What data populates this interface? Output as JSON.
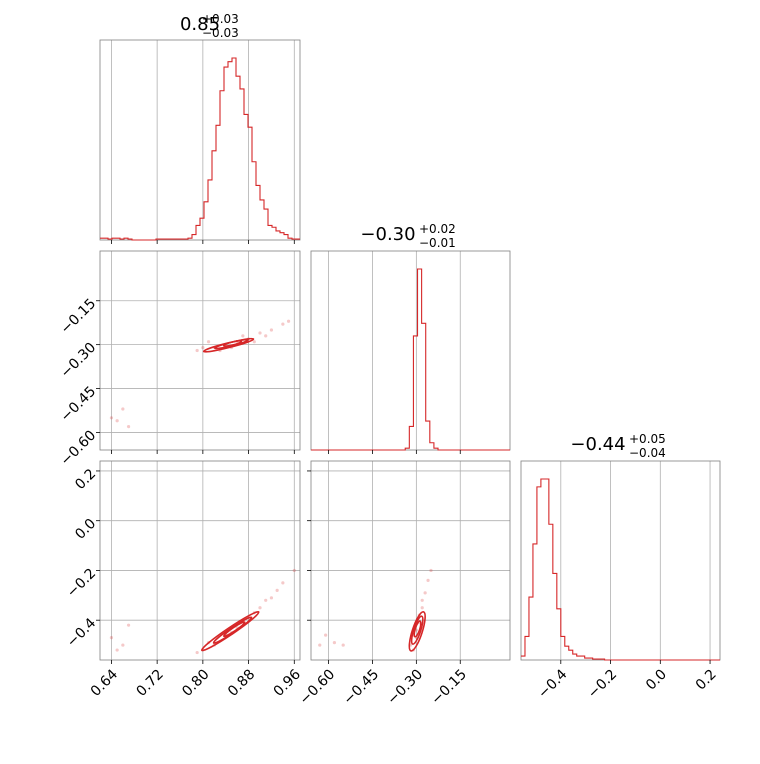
{
  "colors": {
    "series": "#d62728",
    "grid": "#b0b0b0",
    "frame": "#808080"
  },
  "titles": {
    "p0": {
      "median": "0.85",
      "plus": "+0.03",
      "minus": "−0.03"
    },
    "p1": {
      "median": "−0.30",
      "plus": "+0.02",
      "minus": "−0.01"
    },
    "p2": {
      "median": "−0.44",
      "plus": "+0.05",
      "minus": "−0.04"
    }
  },
  "chart_data": {
    "type": "corner",
    "parameters": [
      {
        "range": [
          0.62,
          0.97
        ],
        "ticks": [
          0.64,
          0.72,
          0.8,
          0.88,
          0.96
        ],
        "tick_labels": [
          "0.64",
          "0.72",
          "0.80",
          "0.88",
          "0.96"
        ]
      },
      {
        "range": [
          -0.66,
          0.02
        ],
        "ticks": [
          -0.6,
          -0.45,
          -0.3,
          -0.15
        ],
        "tick_labels": [
          "−0.60",
          "−0.45",
          "−0.30",
          "−0.15"
        ]
      },
      {
        "range": [
          -0.56,
          0.24
        ],
        "ticks": [
          -0.4,
          -0.2,
          0.0,
          0.2
        ],
        "tick_labels": [
          "−0.4",
          "−0.2",
          "0.0",
          "0.2"
        ]
      }
    ],
    "histograms": [
      {
        "param": 0,
        "bin_edges": [
          0.62,
          0.627,
          0.634,
          0.641,
          0.648,
          0.655,
          0.662,
          0.669,
          0.676,
          0.683,
          0.69,
          0.697,
          0.704,
          0.711,
          0.718,
          0.725,
          0.732,
          0.739,
          0.746,
          0.753,
          0.76,
          0.767,
          0.774,
          0.781,
          0.788,
          0.795,
          0.802,
          0.809,
          0.816,
          0.823,
          0.83,
          0.837,
          0.844,
          0.851,
          0.858,
          0.865,
          0.872,
          0.879,
          0.886,
          0.893,
          0.9,
          0.907,
          0.914,
          0.921,
          0.928,
          0.935,
          0.942,
          0.949,
          0.956,
          0.963,
          0.97
        ],
        "counts": [
          0.01,
          0.01,
          0.005,
          0.01,
          0.01,
          0.005,
          0.01,
          0.005,
          0.0,
          0.0,
          0.0,
          0.0,
          0.0,
          0.0,
          0.005,
          0.005,
          0.005,
          0.005,
          0.005,
          0.005,
          0.005,
          0.005,
          0.01,
          0.03,
          0.08,
          0.12,
          0.21,
          0.33,
          0.49,
          0.63,
          0.82,
          0.95,
          0.98,
          1.0,
          0.9,
          0.83,
          0.69,
          0.62,
          0.43,
          0.3,
          0.22,
          0.17,
          0.08,
          0.07,
          0.05,
          0.04,
          0.03,
          0.01,
          0.005,
          0.005
        ]
      },
      {
        "param": 1,
        "bin_edges": [
          -0.66,
          -0.646,
          -0.632,
          -0.618,
          -0.604,
          -0.59,
          -0.576,
          -0.562,
          -0.548,
          -0.534,
          -0.52,
          -0.506,
          -0.492,
          -0.478,
          -0.464,
          -0.45,
          -0.436,
          -0.422,
          -0.408,
          -0.394,
          -0.38,
          -0.366,
          -0.352,
          -0.338,
          -0.324,
          -0.31,
          -0.296,
          -0.282,
          -0.268,
          -0.254,
          -0.24,
          -0.226,
          -0.212,
          -0.198,
          -0.184,
          -0.17,
          -0.156,
          -0.142,
          -0.128,
          -0.114,
          -0.1,
          -0.086,
          -0.072,
          -0.058,
          -0.044,
          -0.03,
          -0.016,
          -0.002,
          0.012,
          0.02
        ],
        "counts": [
          0.0,
          0.0,
          0.0,
          0.0,
          0.0,
          0.0,
          0.0,
          0.0,
          0.0,
          0.0,
          0.0,
          0.0,
          0.0,
          0.0,
          0.0,
          0.0,
          0.0,
          0.0,
          0.0,
          0.0,
          0.0,
          0.0,
          0.0,
          0.01,
          0.13,
          0.63,
          1.0,
          0.7,
          0.16,
          0.04,
          0.01,
          0.0,
          0.0,
          0.0,
          0.0,
          0.0,
          0.0,
          0.0,
          0.0,
          0.0,
          0.0,
          0.0,
          0.0,
          0.0,
          0.0,
          0.0,
          0.0,
          0.0,
          0.0
        ]
      },
      {
        "param": 2,
        "bin_edges": [
          -0.56,
          -0.544,
          -0.528,
          -0.512,
          -0.496,
          -0.48,
          -0.464,
          -0.448,
          -0.432,
          -0.416,
          -0.4,
          -0.384,
          -0.368,
          -0.352,
          -0.336,
          -0.32,
          -0.304,
          -0.288,
          -0.272,
          -0.256,
          -0.24,
          -0.224,
          -0.208,
          -0.192,
          -0.176,
          -0.16,
          -0.144,
          -0.128,
          -0.112,
          -0.096,
          -0.08,
          -0.064,
          -0.048,
          -0.032,
          -0.016,
          0.0,
          0.016,
          0.032,
          0.048,
          0.064,
          0.08,
          0.096,
          0.112,
          0.128,
          0.144,
          0.16,
          0.176,
          0.192,
          0.208,
          0.224,
          0.24
        ],
        "counts": [
          0.02,
          0.12,
          0.32,
          0.59,
          0.88,
          0.92,
          0.92,
          0.69,
          0.44,
          0.26,
          0.12,
          0.07,
          0.05,
          0.03,
          0.02,
          0.02,
          0.01,
          0.01,
          0.005,
          0.005,
          0.005,
          0.0,
          0.0,
          0.0,
          0.0,
          0.0,
          0.0,
          0.0,
          0.0,
          0.0,
          0.0,
          0.0,
          0.0,
          0.0,
          0.0,
          0.0,
          0.0,
          0.0,
          0.0,
          0.0,
          0.0,
          0.0,
          0.0,
          0.0,
          0.0,
          0.0,
          0.0,
          0.0,
          0.0,
          0.0
        ]
      }
    ],
    "scatter_2d": [
      {
        "x_param": 0,
        "y_param": 1,
        "points": [
          [
            0.8,
            -0.31
          ],
          [
            0.82,
            -0.31
          ],
          [
            0.84,
            -0.3
          ],
          [
            0.86,
            -0.29
          ],
          [
            0.88,
            -0.28
          ],
          [
            0.9,
            -0.26
          ],
          [
            0.92,
            -0.25
          ],
          [
            0.94,
            -0.23
          ],
          [
            0.95,
            -0.22
          ],
          [
            0.79,
            -0.32
          ],
          [
            0.81,
            -0.29
          ],
          [
            0.83,
            -0.32
          ],
          [
            0.85,
            -0.31
          ],
          [
            0.87,
            -0.27
          ],
          [
            0.89,
            -0.29
          ],
          [
            0.91,
            -0.27
          ],
          [
            0.64,
            -0.55
          ],
          [
            0.65,
            -0.56
          ],
          [
            0.66,
            -0.52
          ],
          [
            0.67,
            -0.58
          ]
        ],
        "contours": [
          {
            "center": [
              0.845,
              -0.302
            ],
            "semi_axes": [
              0.045,
              0.008
            ],
            "angle_deg": 14
          },
          {
            "center": [
              0.85,
              -0.298
            ],
            "semi_axes": [
              0.03,
              0.006
            ],
            "angle_deg": 14
          },
          {
            "center": [
              0.852,
              -0.296
            ],
            "semi_axes": [
              0.016,
              0.004
            ],
            "angle_deg": 14
          }
        ]
      },
      {
        "x_param": 0,
        "y_param": 2,
        "points": [
          [
            0.8,
            -0.52
          ],
          [
            0.82,
            -0.5
          ],
          [
            0.84,
            -0.46
          ],
          [
            0.86,
            -0.43
          ],
          [
            0.88,
            -0.39
          ],
          [
            0.9,
            -0.35
          ],
          [
            0.92,
            -0.31
          ],
          [
            0.94,
            -0.25
          ],
          [
            0.96,
            -0.2
          ],
          [
            0.79,
            -0.53
          ],
          [
            0.81,
            -0.49
          ],
          [
            0.85,
            -0.45
          ],
          [
            0.87,
            -0.4
          ],
          [
            0.89,
            -0.37
          ],
          [
            0.91,
            -0.32
          ],
          [
            0.93,
            -0.28
          ],
          [
            0.64,
            -0.47
          ],
          [
            0.66,
            -0.5
          ],
          [
            0.67,
            -0.42
          ],
          [
            0.65,
            -0.52
          ]
        ],
        "contours": [
          {
            "center": [
              0.848,
              -0.444
            ],
            "semi_axes": [
              0.06,
              0.014
            ],
            "angle_deg": 34
          },
          {
            "center": [
              0.852,
              -0.44
            ],
            "semi_axes": [
              0.04,
              0.01
            ],
            "angle_deg": 34
          },
          {
            "center": [
              0.855,
              -0.436
            ],
            "semi_axes": [
              0.022,
              0.007
            ],
            "angle_deg": 34
          }
        ]
      },
      {
        "x_param": 1,
        "y_param": 2,
        "points": [
          [
            -0.31,
            -0.52
          ],
          [
            -0.3,
            -0.47
          ],
          [
            -0.29,
            -0.41
          ],
          [
            -0.28,
            -0.35
          ],
          [
            -0.27,
            -0.29
          ],
          [
            -0.26,
            -0.24
          ],
          [
            -0.25,
            -0.2
          ],
          [
            -0.32,
            -0.5
          ],
          [
            -0.3,
            -0.44
          ],
          [
            -0.29,
            -0.38
          ],
          [
            -0.31,
            -0.46
          ],
          [
            -0.28,
            -0.32
          ],
          [
            -0.61,
            -0.46
          ],
          [
            -0.58,
            -0.49
          ],
          [
            -0.55,
            -0.5
          ],
          [
            -0.63,
            -0.5
          ]
        ],
        "contours": [
          {
            "center": [
              -0.297,
              -0.445
            ],
            "semi_axes": [
              0.07,
              0.02
            ],
            "angle_deg": 72
          },
          {
            "center": [
              -0.297,
              -0.44
            ],
            "semi_axes": [
              0.05,
              0.014
            ],
            "angle_deg": 72
          },
          {
            "center": [
              -0.296,
              -0.435
            ],
            "semi_axes": [
              0.028,
              0.009
            ],
            "angle_deg": 72
          }
        ]
      }
    ]
  }
}
